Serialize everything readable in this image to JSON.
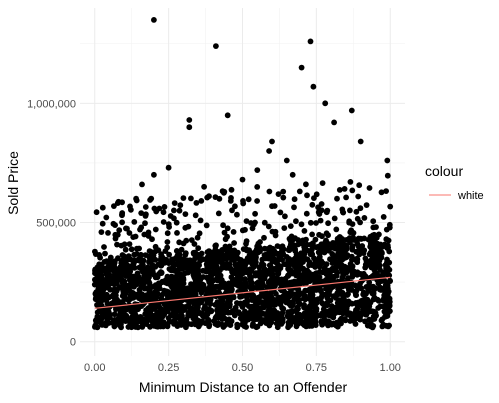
{
  "chart_data": {
    "type": "scatter",
    "xlabel": "Minimum Distance to an Offender",
    "ylabel": "Sold Price",
    "xlim": [
      -0.05,
      1.05
    ],
    "ylim": [
      -60000,
      1400000
    ],
    "x_ticks": [
      0,
      0.25,
      0.5,
      0.75,
      1
    ],
    "x_tick_labels": [
      "0.00",
      "0.25",
      "0.50",
      "0.75",
      "1.00"
    ],
    "y_ticks": [
      0,
      500000,
      1000000
    ],
    "y_tick_labels": [
      "0",
      "500,000",
      "1,000,000"
    ],
    "grid": true,
    "legend": {
      "title": "colour",
      "placement": "right",
      "entries": [
        {
          "label": "white",
          "color": "#f8766d"
        }
      ]
    },
    "point_color": "#000000",
    "cloud": {
      "x_range": [
        0,
        1
      ],
      "y_floor": 60000,
      "dense_top_at_x0": 330000,
      "dense_top_at_x1": 440000
    },
    "outliers": [
      {
        "x": 0.2,
        "y": 1350000
      },
      {
        "x": 0.41,
        "y": 1240000
      },
      {
        "x": 0.73,
        "y": 1260000
      },
      {
        "x": 0.7,
        "y": 1150000
      },
      {
        "x": 0.74,
        "y": 1070000
      },
      {
        "x": 0.78,
        "y": 1000000
      },
      {
        "x": 0.87,
        "y": 970000
      },
      {
        "x": 0.45,
        "y": 950000
      },
      {
        "x": 0.32,
        "y": 930000
      },
      {
        "x": 0.32,
        "y": 900000
      },
      {
        "x": 0.81,
        "y": 920000
      },
      {
        "x": 0.9,
        "y": 840000
      },
      {
        "x": 0.99,
        "y": 760000
      },
      {
        "x": 0.25,
        "y": 730000
      },
      {
        "x": 0.59,
        "y": 800000
      },
      {
        "x": 0.65,
        "y": 760000
      },
      {
        "x": 0.16,
        "y": 660000
      },
      {
        "x": 0.37,
        "y": 650000
      },
      {
        "x": 0.5,
        "y": 680000
      },
      {
        "x": 0.2,
        "y": 700000
      },
      {
        "x": 0.55,
        "y": 720000
      },
      {
        "x": 0.6,
        "y": 840000
      },
      {
        "x": 0.67,
        "y": 700000
      },
      {
        "x": 0.82,
        "y": 600000
      },
      {
        "x": 0.14,
        "y": 600000
      }
    ],
    "series": [
      {
        "name": "white",
        "type": "line",
        "color": "#f8766d",
        "x": [
          0,
          1
        ],
        "y": [
          140000,
          270000
        ]
      }
    ]
  }
}
